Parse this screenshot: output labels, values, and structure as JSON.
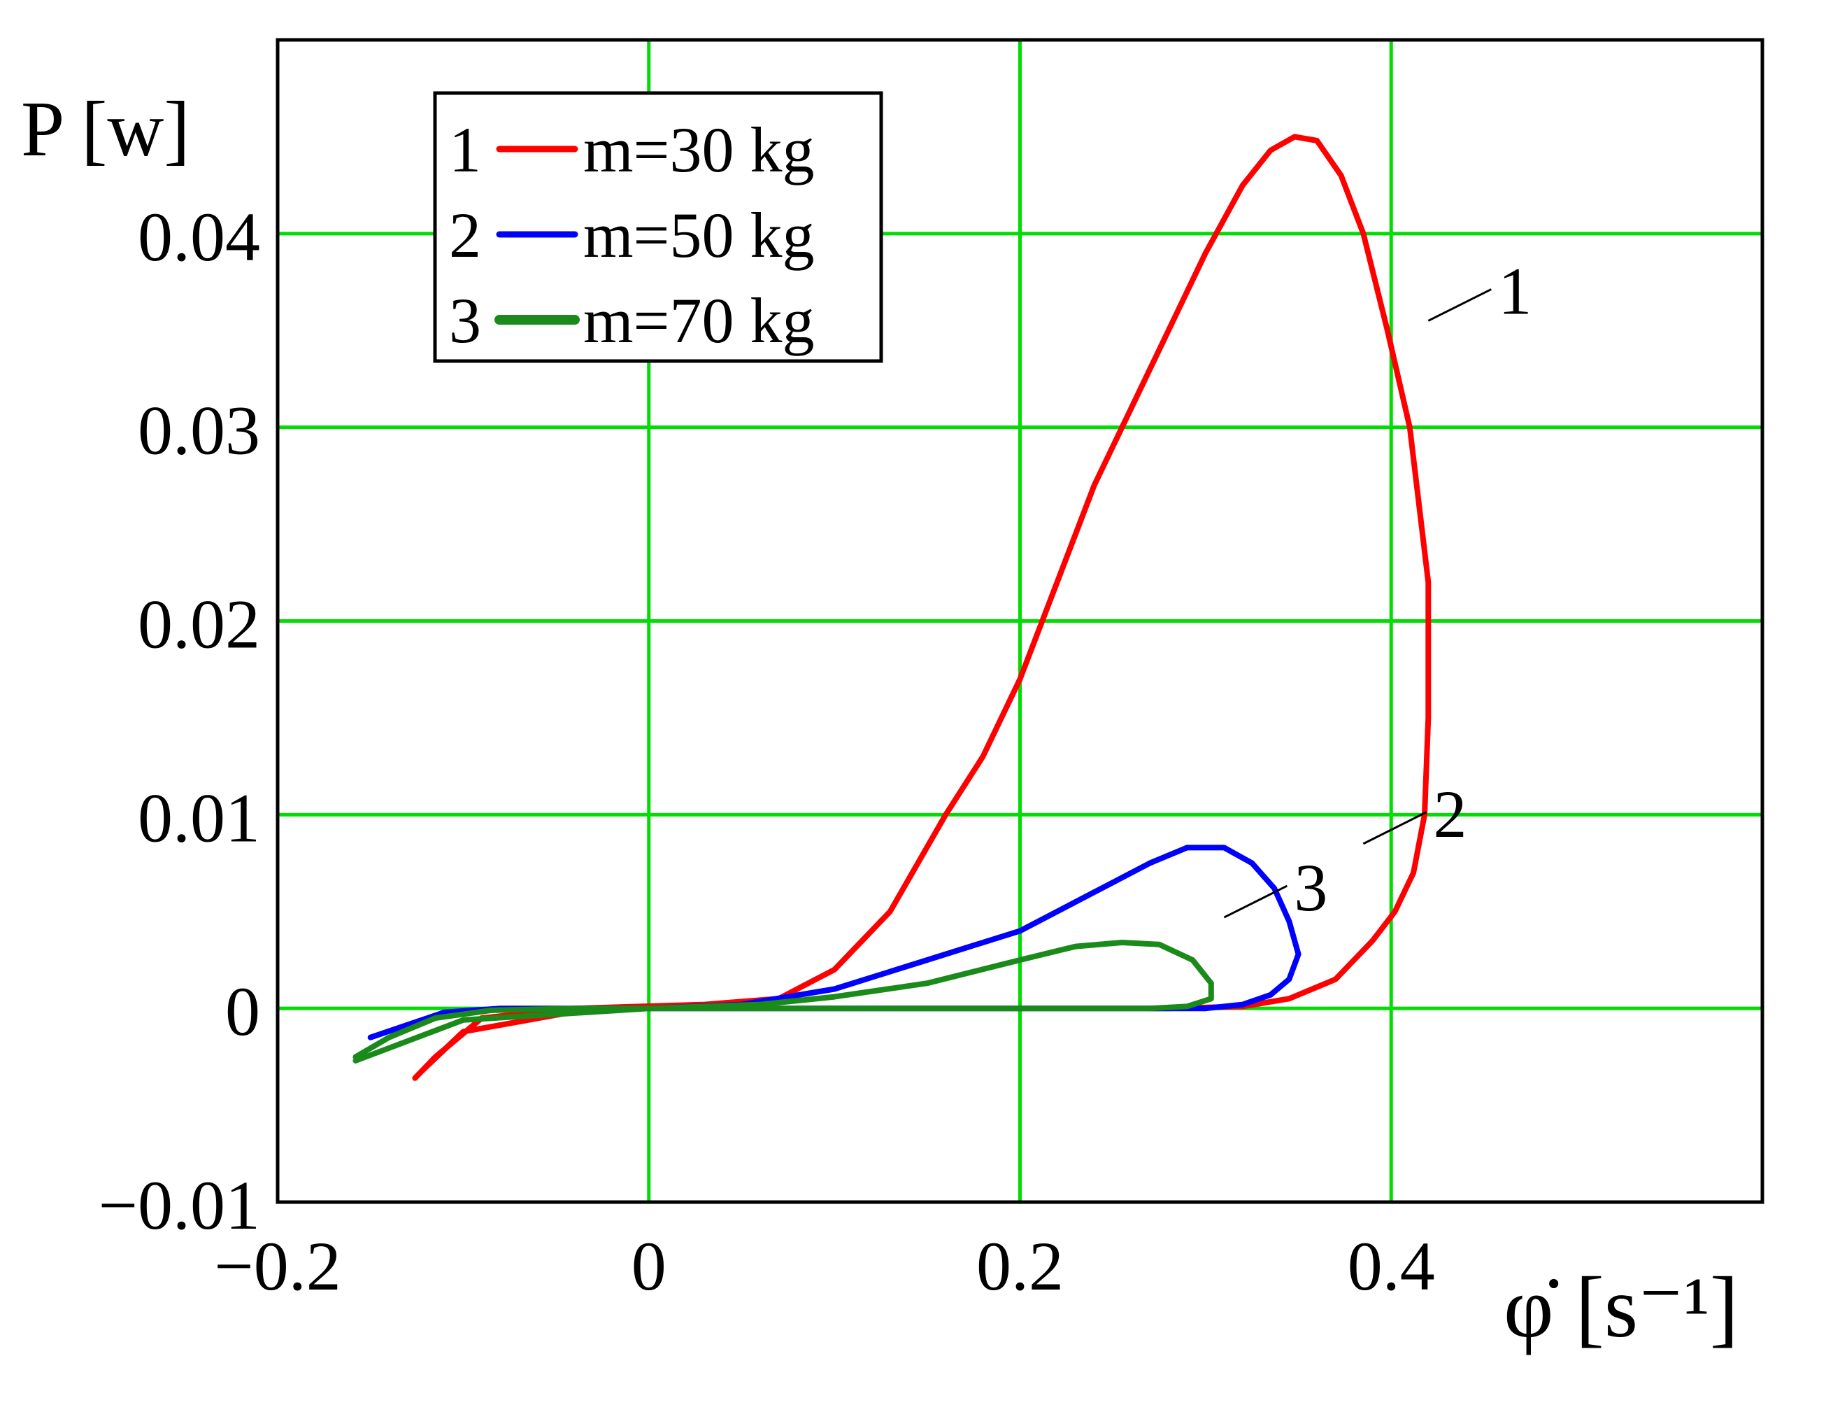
{
  "chart_data": {
    "type": "line",
    "title": "",
    "xlabel": "φ̇ [s⁻¹]",
    "ylabel": "P [w]",
    "xlim": [
      -0.2,
      0.6
    ],
    "ylim": [
      -0.01,
      0.05
    ],
    "grid": true,
    "grid_color": "#00dd00",
    "xticks": [
      {
        "value": -0.2,
        "label": "−0.2"
      },
      {
        "value": 0,
        "label": "0"
      },
      {
        "value": 0.2,
        "label": "0.2"
      },
      {
        "value": 0.4,
        "label": "0.4"
      }
    ],
    "yticks": [
      {
        "value": 0.04,
        "label": "0.04"
      },
      {
        "value": 0.03,
        "label": "0.03"
      },
      {
        "value": 0.02,
        "label": "0.02"
      },
      {
        "value": 0.01,
        "label": "0.01"
      },
      {
        "value": 0,
        "label": "0"
      },
      {
        "value": -0.01,
        "label": "−0.01"
      }
    ],
    "legend": {
      "placement": "top-left",
      "entries": [
        {
          "index": "1",
          "label": "m=30 kg",
          "color": "#ff0000"
        },
        {
          "index": "2",
          "label": "m=50 kg",
          "color": "#0000ff"
        },
        {
          "index": "3",
          "label": "m=70 kg",
          "color": "#1a8a1a"
        }
      ]
    },
    "series": [
      {
        "index": "1",
        "color": "#ff0000",
        "points": [
          [
            -0.03,
            0.0
          ],
          [
            -0.1,
            -0.0012
          ],
          [
            -0.123,
            -0.0033
          ],
          [
            -0.126,
            -0.0036
          ],
          [
            -0.115,
            -0.0025
          ],
          [
            -0.09,
            -0.0005
          ],
          [
            -0.04,
            0.0
          ],
          [
            0.03,
            0.0002
          ],
          [
            0.07,
            0.0005
          ],
          [
            0.1,
            0.002
          ],
          [
            0.13,
            0.005
          ],
          [
            0.16,
            0.01
          ],
          [
            0.18,
            0.013
          ],
          [
            0.2,
            0.017
          ],
          [
            0.22,
            0.022
          ],
          [
            0.24,
            0.027
          ],
          [
            0.26,
            0.031
          ],
          [
            0.28,
            0.035
          ],
          [
            0.3,
            0.039
          ],
          [
            0.32,
            0.0425
          ],
          [
            0.335,
            0.0443
          ],
          [
            0.348,
            0.045
          ],
          [
            0.36,
            0.0448
          ],
          [
            0.373,
            0.043
          ],
          [
            0.385,
            0.04
          ],
          [
            0.398,
            0.035
          ],
          [
            0.41,
            0.03
          ],
          [
            0.42,
            0.022
          ],
          [
            0.42,
            0.015
          ],
          [
            0.418,
            0.01
          ],
          [
            0.412,
            0.007
          ],
          [
            0.402,
            0.005
          ],
          [
            0.39,
            0.0035
          ],
          [
            0.37,
            0.0015
          ],
          [
            0.345,
            0.0005
          ],
          [
            0.32,
            0.0001
          ],
          [
            0.28,
            0.0
          ],
          [
            0.27,
            0.0
          ]
        ]
      },
      {
        "index": "2",
        "color": "#0000ff",
        "points": [
          [
            -0.15,
            -0.0015
          ],
          [
            -0.11,
            -0.0002
          ],
          [
            -0.08,
            0.0
          ],
          [
            0.0,
            0.0
          ],
          [
            0.05,
            0.0002
          ],
          [
            0.1,
            0.001
          ],
          [
            0.15,
            0.0025
          ],
          [
            0.2,
            0.004
          ],
          [
            0.24,
            0.006
          ],
          [
            0.27,
            0.0075
          ],
          [
            0.29,
            0.0083
          ],
          [
            0.31,
            0.0083
          ],
          [
            0.325,
            0.0075
          ],
          [
            0.337,
            0.0062
          ],
          [
            0.345,
            0.0045
          ],
          [
            0.35,
            0.0028
          ],
          [
            0.345,
            0.0015
          ],
          [
            0.335,
            0.0007
          ],
          [
            0.32,
            0.0002
          ],
          [
            0.3,
            0.0
          ],
          [
            0.26,
            0.0
          ],
          [
            0.0,
            0.0
          ]
        ]
      },
      {
        "index": "3",
        "color": "#1a8a1a",
        "points": [
          [
            -0.158,
            -0.0025
          ],
          [
            -0.14,
            -0.0015
          ],
          [
            -0.115,
            -0.0005
          ],
          [
            -0.085,
            -0.0001
          ],
          [
            -0.04,
            0.0
          ],
          [
            0.0,
            0.0
          ],
          [
            0.06,
            0.0002
          ],
          [
            0.1,
            0.0006
          ],
          [
            0.15,
            0.0013
          ],
          [
            0.2,
            0.0025
          ],
          [
            0.23,
            0.0032
          ],
          [
            0.255,
            0.0034
          ],
          [
            0.275,
            0.0033
          ],
          [
            0.293,
            0.0025
          ],
          [
            0.303,
            0.0013
          ],
          [
            0.303,
            0.0005
          ],
          [
            0.29,
            0.0001
          ],
          [
            0.27,
            0.0
          ],
          [
            0.25,
            0.0
          ],
          [
            0.0,
            0.0
          ],
          [
            -0.1,
            -0.0006
          ],
          [
            -0.158,
            -0.0027
          ]
        ]
      }
    ],
    "annotations": [
      {
        "label": "1",
        "x": 0.42,
        "y": 0.0355
      },
      {
        "label": "2",
        "x": 0.385,
        "y": 0.0085
      },
      {
        "label": "3",
        "x": 0.31,
        "y": 0.0047
      }
    ]
  }
}
